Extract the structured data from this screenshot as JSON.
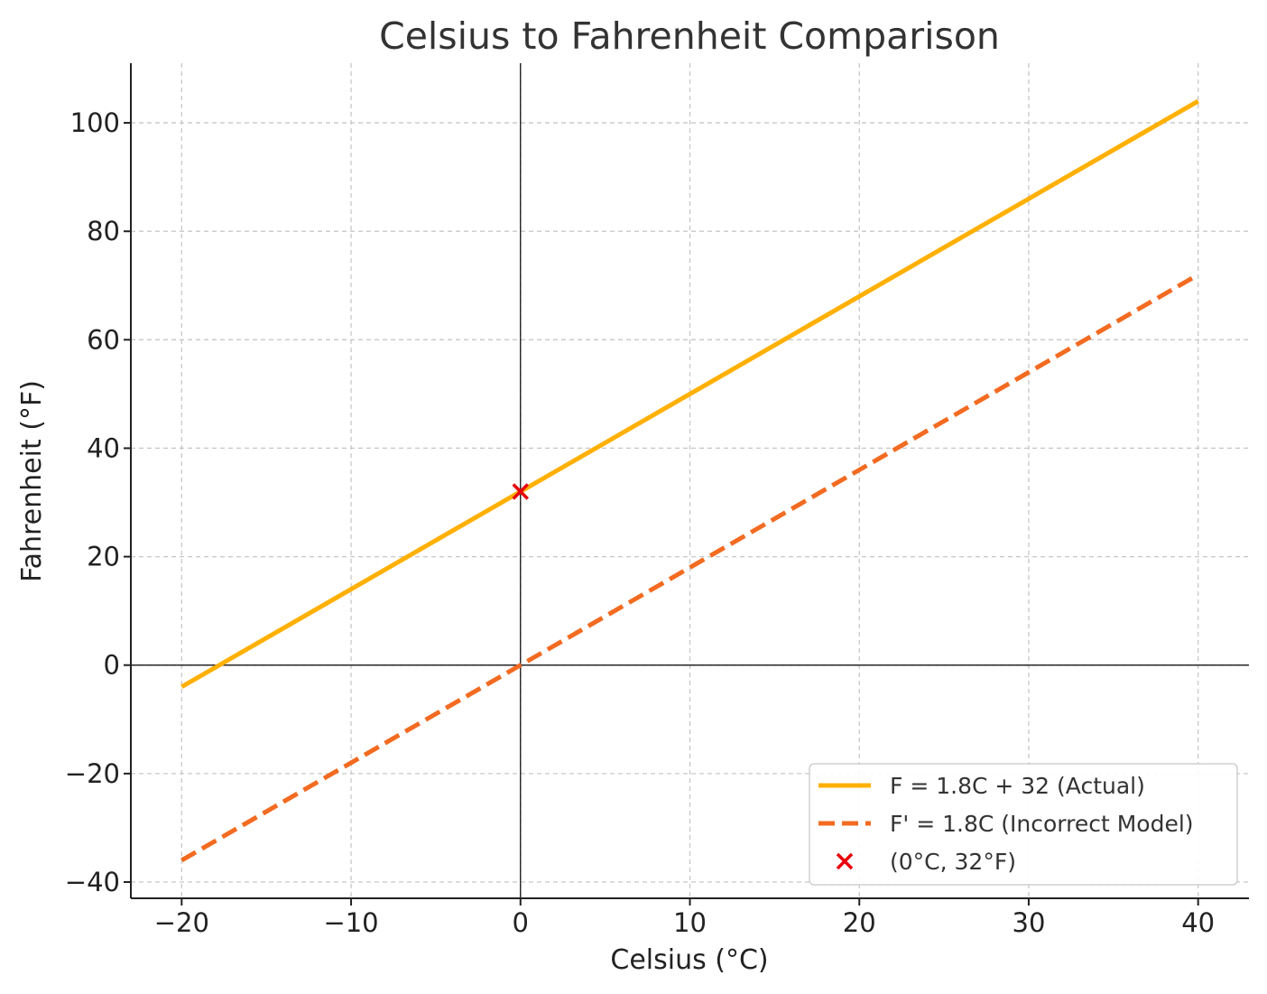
{
  "chart_data": {
    "type": "line",
    "title": "Celsius to Fahrenheit Comparison",
    "xlabel": "Celsius (°C)",
    "ylabel": "Fahrenheit (°F)",
    "xlim": [
      -23,
      43
    ],
    "ylim": [
      -43,
      111
    ],
    "x_ticks": [
      -20,
      -10,
      0,
      10,
      20,
      30,
      40
    ],
    "y_ticks": [
      -40,
      -20,
      0,
      20,
      40,
      60,
      80,
      100
    ],
    "x_tick_labels": [
      "−20",
      "−10",
      "0",
      "10",
      "20",
      "30",
      "40"
    ],
    "y_tick_labels": [
      "−40",
      "−20",
      "0",
      "20",
      "40",
      "60",
      "80",
      "100"
    ],
    "grid": true,
    "legend_position": "lower-right",
    "series": [
      {
        "name": "F = 1.8C + 32 (Actual)",
        "style": "solid",
        "color": "#FFB000",
        "x": [
          -20,
          40
        ],
        "y": [
          -4,
          104
        ]
      },
      {
        "name": "F' = 1.8C (Incorrect Model)",
        "style": "dashed",
        "color": "#F26B21",
        "x": [
          -20,
          40
        ],
        "y": [
          -36,
          72
        ]
      }
    ],
    "points": [
      {
        "name": "(0°C, 32°F)",
        "marker": "x",
        "color": "#E8000B",
        "x": 0,
        "y": 32
      }
    ]
  }
}
